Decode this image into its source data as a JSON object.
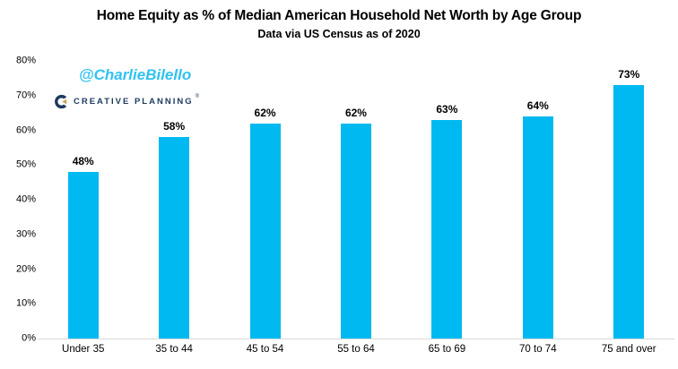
{
  "page": {
    "background": "#ffffff"
  },
  "branding": {
    "watermark": "@CharlieBilello",
    "watermark_color": "#2fc2f2",
    "logo_text": "CREATIVE PLANNING",
    "trademark": "®",
    "logo_navy": "#1d3a5f",
    "logo_gold": "#c9a158"
  },
  "chart_data": {
    "type": "bar",
    "title": "Home Equity as % of Median American Household Net Worth by Age Group",
    "subtitle": "Data via US Census as of 2020",
    "categories": [
      "Under 35",
      "35 to 44",
      "45 to 54",
      "55 to 64",
      "65 to 69",
      "70 to 74",
      "75 and over"
    ],
    "values": [
      48,
      58,
      62,
      62,
      63,
      64,
      73
    ],
    "bar_labels": [
      "48%",
      "58%",
      "62%",
      "62%",
      "63%",
      "64%",
      "73%"
    ],
    "bar_color": "#00b9f0",
    "xlabel": "",
    "ylabel": "",
    "ylim": [
      0,
      80
    ],
    "yticks": [
      {
        "value": 0,
        "label": "0%"
      },
      {
        "value": 10,
        "label": "10%"
      },
      {
        "value": 20,
        "label": "20%"
      },
      {
        "value": 30,
        "label": "30%"
      },
      {
        "value": 40,
        "label": "40%"
      },
      {
        "value": 50,
        "label": "50%"
      },
      {
        "value": 60,
        "label": "60%"
      },
      {
        "value": 70,
        "label": "70%"
      },
      {
        "value": 80,
        "label": "80%"
      }
    ],
    "grid": false,
    "legend": false,
    "axis_line_color": "#d9d9d9",
    "text_color": "#000000"
  }
}
